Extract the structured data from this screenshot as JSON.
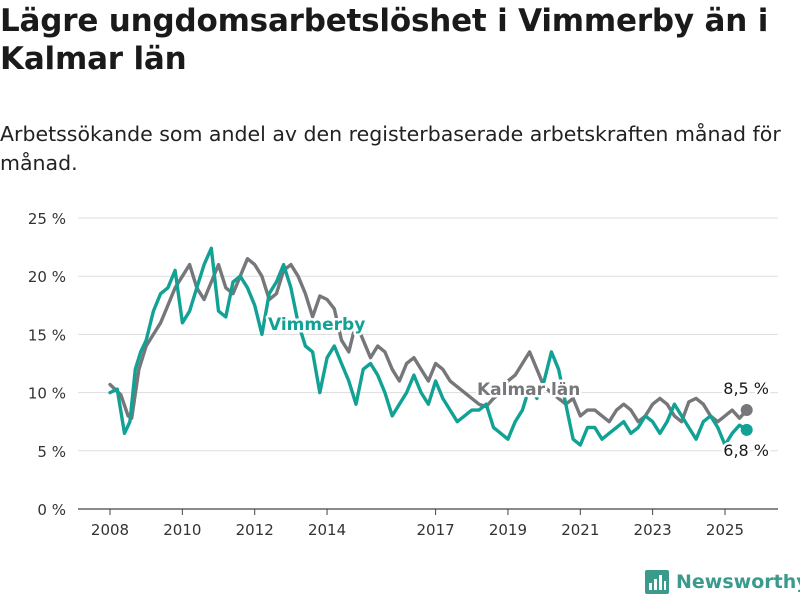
{
  "title": "Lägre ungdomsarbetslöshet i Vimmerby än i Kalmar län",
  "subtitle": "Arbetssökande som andel av den registerbaserade arbetskraften månad för månad.",
  "brand": "Newsworthy",
  "colors": {
    "vimmerby": "#12a195",
    "kalmar": "#75777a",
    "grid": "#dddddd",
    "brand": "#3a9a8c"
  },
  "chart_data": {
    "type": "line",
    "xlabel": "",
    "ylabel": "",
    "ylim": [
      0,
      25
    ],
    "xlim": [
      2008,
      2025.7
    ],
    "yticks": [
      0,
      5,
      10,
      15,
      20,
      25
    ],
    "ytick_labels": [
      "0 %",
      "5 %",
      "10 %",
      "15 %",
      "20 %",
      "25 %"
    ],
    "xticks": [
      2008,
      2010,
      2012,
      2014,
      2017,
      2019,
      2021,
      2023,
      2025
    ],
    "xtick_labels": [
      "2008",
      "2010",
      "2012",
      "2014",
      "2017",
      "2019",
      "2021",
      "2023",
      "2025"
    ],
    "grid": true,
    "annotations": {
      "kalmar_end": "8,5 %",
      "vimmerby_end": "6,8 %"
    },
    "series": [
      {
        "name": "Kalmar län",
        "x": [
          2008.0,
          2008.3,
          2008.5,
          2008.6,
          2008.8,
          2009.0,
          2009.2,
          2009.4,
          2009.6,
          2009.8,
          2010.0,
          2010.2,
          2010.4,
          2010.6,
          2010.8,
          2011.0,
          2011.2,
          2011.4,
          2011.6,
          2011.8,
          2012.0,
          2012.2,
          2012.4,
          2012.6,
          2012.8,
          2013.0,
          2013.2,
          2013.4,
          2013.6,
          2013.8,
          2014.0,
          2014.2,
          2014.4,
          2014.6,
          2014.8,
          2015.0,
          2015.2,
          2015.4,
          2015.6,
          2015.8,
          2016.0,
          2016.2,
          2016.4,
          2016.6,
          2016.8,
          2017.0,
          2017.2,
          2017.4,
          2017.6,
          2017.8,
          2018.0,
          2018.2,
          2018.4,
          2018.6,
          2018.8,
          2019.0,
          2019.2,
          2019.4,
          2019.6,
          2019.8,
          2020.0,
          2020.2,
          2020.4,
          2020.6,
          2020.8,
          2021.0,
          2021.2,
          2021.4,
          2021.6,
          2021.8,
          2022.0,
          2022.2,
          2022.4,
          2022.6,
          2022.8,
          2023.0,
          2023.2,
          2023.4,
          2023.6,
          2023.8,
          2024.0,
          2024.2,
          2024.4,
          2024.6,
          2024.8,
          2025.0,
          2025.2,
          2025.4,
          2025.6
        ],
        "values": [
          10.7,
          9.8,
          8.0,
          7.8,
          12.0,
          14.0,
          15.0,
          16.0,
          17.5,
          19.0,
          20.0,
          21.0,
          19.0,
          18.0,
          19.5,
          21.0,
          19.0,
          18.5,
          20.0,
          21.5,
          21.0,
          20.0,
          18.0,
          18.5,
          20.5,
          21.0,
          20.0,
          18.5,
          16.5,
          18.3,
          18.0,
          17.2,
          14.5,
          13.5,
          16.0,
          14.5,
          13.0,
          14.0,
          13.5,
          12.0,
          11.0,
          12.5,
          13.0,
          12.0,
          11.0,
          12.5,
          12.0,
          11.0,
          10.5,
          10.0,
          9.5,
          9.0,
          8.8,
          9.5,
          10.0,
          11.0,
          11.5,
          12.5,
          13.5,
          12.0,
          10.5,
          10.0,
          9.5,
          9.0,
          9.5,
          8.0,
          8.5,
          8.5,
          8.0,
          7.5,
          8.5,
          9.0,
          8.5,
          7.5,
          8.0,
          9.0,
          9.5,
          9.0,
          8.0,
          7.5,
          9.2,
          9.5,
          9.0,
          8.0,
          7.5,
          8.0,
          8.5,
          7.8,
          8.5
        ]
      },
      {
        "name": "Vimmerby",
        "x": [
          2008.0,
          2008.2,
          2008.4,
          2008.55,
          2008.7,
          2008.85,
          2009.0,
          2009.2,
          2009.4,
          2009.6,
          2009.8,
          2010.0,
          2010.2,
          2010.4,
          2010.6,
          2010.8,
          2011.0,
          2011.2,
          2011.4,
          2011.6,
          2011.8,
          2012.0,
          2012.2,
          2012.4,
          2012.6,
          2012.8,
          2013.0,
          2013.2,
          2013.4,
          2013.6,
          2013.8,
          2014.0,
          2014.2,
          2014.4,
          2014.6,
          2014.8,
          2015.0,
          2015.2,
          2015.4,
          2015.6,
          2015.8,
          2016.0,
          2016.2,
          2016.4,
          2016.6,
          2016.8,
          2017.0,
          2017.2,
          2017.4,
          2017.6,
          2017.8,
          2018.0,
          2018.2,
          2018.4,
          2018.6,
          2018.8,
          2019.0,
          2019.2,
          2019.4,
          2019.6,
          2019.8,
          2020.0,
          2020.2,
          2020.4,
          2020.6,
          2020.8,
          2021.0,
          2021.2,
          2021.4,
          2021.6,
          2021.8,
          2022.0,
          2022.2,
          2022.4,
          2022.6,
          2022.8,
          2023.0,
          2023.2,
          2023.4,
          2023.6,
          2023.8,
          2024.0,
          2024.2,
          2024.4,
          2024.6,
          2024.8,
          2025.0,
          2025.2,
          2025.4,
          2025.6
        ],
        "values": [
          10.0,
          10.3,
          6.5,
          7.5,
          12.0,
          13.5,
          14.5,
          17.0,
          18.5,
          19.0,
          20.5,
          16.0,
          17.0,
          19.0,
          21.0,
          22.4,
          17.0,
          16.5,
          19.5,
          20.0,
          19.0,
          17.5,
          15.0,
          18.5,
          19.5,
          21.0,
          19.0,
          16.0,
          14.0,
          13.5,
          10.0,
          13.0,
          14.0,
          12.5,
          11.0,
          9.0,
          12.0,
          12.5,
          11.5,
          10.0,
          8.0,
          9.0,
          10.0,
          11.5,
          10.0,
          9.0,
          11.0,
          9.5,
          8.5,
          7.5,
          8.0,
          8.5,
          8.5,
          9.0,
          7.0,
          6.5,
          6.0,
          7.5,
          8.5,
          10.5,
          9.5,
          11.0,
          13.5,
          12.0,
          9.0,
          6.0,
          5.5,
          7.0,
          7.0,
          6.0,
          6.5,
          7.0,
          7.5,
          6.5,
          7.0,
          8.0,
          7.5,
          6.5,
          7.5,
          9.0,
          8.0,
          7.0,
          6.0,
          7.5,
          8.0,
          7.0,
          5.5,
          6.5,
          7.2,
          6.8
        ]
      }
    ]
  }
}
